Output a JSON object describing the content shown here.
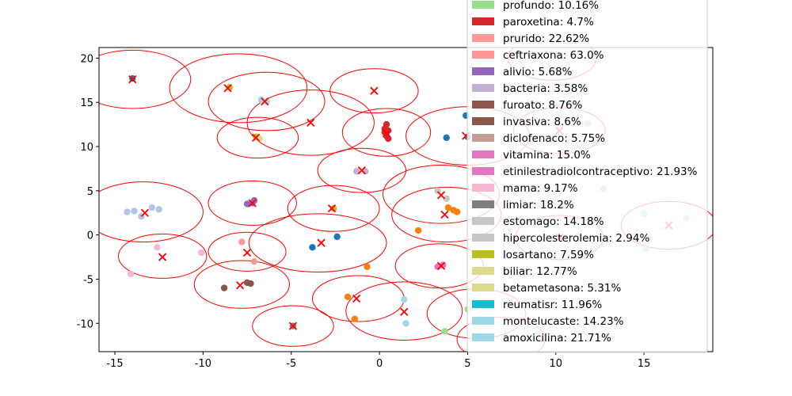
{
  "chart_data": {
    "type": "scatter",
    "xlim": [
      -15.9,
      18.9
    ],
    "ylim": [
      -13.2,
      21.2
    ],
    "xticks": [
      -15,
      -10,
      -5,
      0,
      5,
      10,
      15
    ],
    "yticks": [
      -10,
      -5,
      0,
      5,
      10,
      15,
      20
    ],
    "grid": false,
    "legend_placement": "top-right (partially cut off at top)",
    "legend": [
      {
        "label": "profundo: 10.16%",
        "color": "#98df8a"
      },
      {
        "label": "paroxetina: 4.7%",
        "color": "#d62728"
      },
      {
        "label": "prurido: 22.62%",
        "color": "#ff9896"
      },
      {
        "label": "ceftriaxona: 63.0%",
        "color": "#ff9896"
      },
      {
        "label": "alivio: 5.68%",
        "color": "#9467bd"
      },
      {
        "label": "bacteria: 3.58%",
        "color": "#c5b0d5"
      },
      {
        "label": "furoato: 8.76%",
        "color": "#8c564b"
      },
      {
        "label": "invasiva: 8.6%",
        "color": "#8c564b"
      },
      {
        "label": "diclofenaco: 5.75%",
        "color": "#c49c94"
      },
      {
        "label": "vitamina: 15.0%",
        "color": "#e377c2"
      },
      {
        "label": "etinilestradiolcontraceptivo: 21.93%",
        "color": "#e377c2"
      },
      {
        "label": "mama: 9.17%",
        "color": "#f7b6d2"
      },
      {
        "label": "limiar: 18.2%",
        "color": "#7f7f7f"
      },
      {
        "label": "estomago: 14.18%",
        "color": "#c7c7c7"
      },
      {
        "label": "hipercolesterolemia: 2.94%",
        "color": "#c7c7c7"
      },
      {
        "label": "losartano: 7.59%",
        "color": "#bcbd22"
      },
      {
        "label": "biliar: 12.77%",
        "color": "#dbdb8d"
      },
      {
        "label": "betametasona: 5.31%",
        "color": "#dbdb8d"
      },
      {
        "label": "reumatisr: 11.96%",
        "color": "#17becf"
      },
      {
        "label": "montelucaste: 14.23%",
        "color": "#9edae5"
      },
      {
        "label": "amoxicilina: 21.71%",
        "color": "#9edae5"
      }
    ],
    "points": [
      {
        "x": -14.0,
        "y": 17.7,
        "color": "#1f77b4"
      },
      {
        "x": -8.5,
        "y": 16.7,
        "color": "#bcbd22"
      },
      {
        "x": -6.7,
        "y": 15.3,
        "color": "#9edae5"
      },
      {
        "x": -6.4,
        "y": 15.1,
        "color": "#9edae5"
      },
      {
        "x": -7.0,
        "y": 11.1,
        "color": "#bcbd22"
      },
      {
        "x": -6.8,
        "y": 10.9,
        "color": "#dbdb8d"
      },
      {
        "x": 0.4,
        "y": 12.5,
        "color": "#d62728"
      },
      {
        "x": 0.3,
        "y": 12.0,
        "color": "#d62728"
      },
      {
        "x": 0.5,
        "y": 11.8,
        "color": "#d62728"
      },
      {
        "x": 0.4,
        "y": 11.2,
        "color": "#d62728"
      },
      {
        "x": 0.5,
        "y": 10.9,
        "color": "#d62728"
      },
      {
        "x": 0.3,
        "y": 11.6,
        "color": "#d62728"
      },
      {
        "x": 3.8,
        "y": 11.0,
        "color": "#1f77b4"
      },
      {
        "x": 4.9,
        "y": 13.5,
        "color": "#1f77b4"
      },
      {
        "x": 5.0,
        "y": 11.1,
        "color": "#1f77b4"
      },
      {
        "x": -1.3,
        "y": 7.2,
        "color": "#c5b0d5"
      },
      {
        "x": -0.8,
        "y": 7.2,
        "color": "#c5b0d5"
      },
      {
        "x": -7.1,
        "y": 3.9,
        "color": "#9467bd"
      },
      {
        "x": -7.5,
        "y": 3.5,
        "color": "#9467bd"
      },
      {
        "x": -7.2,
        "y": 3.6,
        "color": "#9467bd"
      },
      {
        "x": 3.3,
        "y": 5.0,
        "color": "#c7c7c7"
      },
      {
        "x": 3.8,
        "y": 4.1,
        "color": "#c7c7c7"
      },
      {
        "x": 3.9,
        "y": 3.1,
        "color": "#ff7f0e"
      },
      {
        "x": 4.2,
        "y": 2.8,
        "color": "#ff7f0e"
      },
      {
        "x": 4.4,
        "y": 2.6,
        "color": "#ff7f0e"
      },
      {
        "x": 2.2,
        "y": 0.5,
        "color": "#ff7f0e"
      },
      {
        "x": -14.3,
        "y": 2.6,
        "color": "#aec7e8"
      },
      {
        "x": -13.9,
        "y": 2.7,
        "color": "#aec7e8"
      },
      {
        "x": -13.5,
        "y": 2.1,
        "color": "#aec7e8"
      },
      {
        "x": -12.9,
        "y": 3.1,
        "color": "#aec7e8"
      },
      {
        "x": -12.5,
        "y": 2.9,
        "color": "#aec7e8"
      },
      {
        "x": -2.6,
        "y": 3.0,
        "color": "#bcbd22"
      },
      {
        "x": -2.4,
        "y": -0.2,
        "color": "#1f77b4"
      },
      {
        "x": -3.8,
        "y": -1.4,
        "color": "#1f77b4"
      },
      {
        "x": -7.8,
        "y": -0.8,
        "color": "#ff9896"
      },
      {
        "x": -7.1,
        "y": -3.0,
        "color": "#ff9896"
      },
      {
        "x": -12.6,
        "y": -1.4,
        "color": "#f7b6d2"
      },
      {
        "x": -10.1,
        "y": -2.0,
        "color": "#f7b6d2"
      },
      {
        "x": -14.1,
        "y": -4.4,
        "color": "#f7b6d2"
      },
      {
        "x": -7.5,
        "y": -5.4,
        "color": "#8c564b"
      },
      {
        "x": -7.3,
        "y": -5.5,
        "color": "#8c564b"
      },
      {
        "x": -8.8,
        "y": -6.0,
        "color": "#8c564b"
      },
      {
        "x": -0.7,
        "y": -3.6,
        "color": "#ff7f0e"
      },
      {
        "x": 3.3,
        "y": -3.6,
        "color": "#e377c2"
      },
      {
        "x": 3.6,
        "y": -3.4,
        "color": "#e377c2"
      },
      {
        "x": -4.9,
        "y": -10.3,
        "color": "#7f7f7f"
      },
      {
        "x": -1.8,
        "y": -7.0,
        "color": "#ff7f0e"
      },
      {
        "x": -1.4,
        "y": -9.5,
        "color": "#ff7f0e"
      },
      {
        "x": 1.4,
        "y": -7.3,
        "color": "#9edae5"
      },
      {
        "x": 1.5,
        "y": -10.0,
        "color": "#9edae5"
      },
      {
        "x": 3.7,
        "y": -10.9,
        "color": "#98df8a"
      },
      {
        "x": 5.0,
        "y": -8.4,
        "color": "#98df8a"
      },
      {
        "x": 11.8,
        "y": 12.6,
        "color": "#98df8a"
      },
      {
        "x": 12.7,
        "y": 5.2,
        "color": "#ff9896"
      },
      {
        "x": 15.0,
        "y": 2.4,
        "color": "#98df8a"
      },
      {
        "x": 17.4,
        "y": 1.9,
        "color": "#98df8a"
      },
      {
        "x": 15.1,
        "y": -1.6,
        "color": "#98df8a"
      }
    ],
    "centers": [
      {
        "x": -14.0,
        "y": 17.6
      },
      {
        "x": -8.6,
        "y": 16.6
      },
      {
        "x": -6.5,
        "y": 15.1
      },
      {
        "x": -3.9,
        "y": 12.7
      },
      {
        "x": -7.0,
        "y": 11.0
      },
      {
        "x": -0.3,
        "y": 16.3
      },
      {
        "x": 0.4,
        "y": 11.5
      },
      {
        "x": 4.9,
        "y": 11.2
      },
      {
        "x": 10.2,
        "y": 11.8
      },
      {
        "x": -1.0,
        "y": 7.3
      },
      {
        "x": -7.2,
        "y": 3.6
      },
      {
        "x": -13.3,
        "y": 2.5
      },
      {
        "x": 3.5,
        "y": 4.5
      },
      {
        "x": 3.7,
        "y": 2.3
      },
      {
        "x": -2.7,
        "y": 3.0
      },
      {
        "x": -3.3,
        "y": -0.9
      },
      {
        "x": -7.5,
        "y": -2.0
      },
      {
        "x": -12.3,
        "y": -2.5
      },
      {
        "x": -7.9,
        "y": -5.7
      },
      {
        "x": 3.5,
        "y": -3.5
      },
      {
        "x": -4.9,
        "y": -10.3
      },
      {
        "x": -1.3,
        "y": -7.2
      },
      {
        "x": 1.4,
        "y": -8.7
      },
      {
        "x": 16.4,
        "y": 1.1
      },
      {
        "x": 10.2,
        "y": -0.3
      }
    ],
    "circles": [
      {
        "x": -14.0,
        "y": 17.6,
        "rx": 3.3,
        "ry": 3.3
      },
      {
        "x": -8.0,
        "y": 16.6,
        "rx": 3.9,
        "ry": 3.9
      },
      {
        "x": -6.4,
        "y": 15.1,
        "rx": 3.3,
        "ry": 3.3
      },
      {
        "x": -3.9,
        "y": 12.7,
        "rx": 3.6,
        "ry": 3.7
      },
      {
        "x": -6.9,
        "y": 11.0,
        "rx": 2.3,
        "ry": 2.3
      },
      {
        "x": -0.3,
        "y": 16.3,
        "rx": 2.5,
        "ry": 2.5
      },
      {
        "x": 0.4,
        "y": 11.6,
        "rx": 2.5,
        "ry": 2.7
      },
      {
        "x": 5.0,
        "y": 11.2,
        "rx": 3.5,
        "ry": 3.3
      },
      {
        "x": 10.2,
        "y": 11.8,
        "rx": 2.6,
        "ry": 2.6
      },
      {
        "x": -1.0,
        "y": 7.3,
        "rx": 2.5,
        "ry": 2.5
      },
      {
        "x": -7.2,
        "y": 3.6,
        "rx": 2.5,
        "ry": 2.5
      },
      {
        "x": -13.4,
        "y": 2.6,
        "rx": 3.4,
        "ry": 3.4
      },
      {
        "x": 3.5,
        "y": 4.6,
        "rx": 3.3,
        "ry": 3.3
      },
      {
        "x": 3.8,
        "y": 2.3,
        "rx": 3.1,
        "ry": 3.1
      },
      {
        "x": -2.6,
        "y": 3.0,
        "rx": 2.6,
        "ry": 2.6
      },
      {
        "x": -3.5,
        "y": -0.9,
        "rx": 3.9,
        "ry": 3.3
      },
      {
        "x": -7.5,
        "y": -1.9,
        "rx": 2.2,
        "ry": 2.2
      },
      {
        "x": -12.3,
        "y": -2.4,
        "rx": 2.5,
        "ry": 2.5
      },
      {
        "x": -7.8,
        "y": -5.6,
        "rx": 2.7,
        "ry": 2.7
      },
      {
        "x": 3.4,
        "y": -3.5,
        "rx": 2.5,
        "ry": 2.5
      },
      {
        "x": -4.9,
        "y": -10.3,
        "rx": 2.3,
        "ry": 2.3
      },
      {
        "x": -1.2,
        "y": -7.2,
        "rx": 2.6,
        "ry": 2.6
      },
      {
        "x": 1.4,
        "y": -8.6,
        "rx": 3.3,
        "ry": 3.3
      },
      {
        "x": 5.5,
        "y": -8.9,
        "rx": 2.8,
        "ry": 2.8
      },
      {
        "x": 6.9,
        "y": -11.8,
        "rx": 2.5,
        "ry": 2.5
      },
      {
        "x": 16.4,
        "y": 1.1,
        "rx": 2.7,
        "ry": 2.7
      },
      {
        "x": 10.2,
        "y": -0.3,
        "rx": 2.5,
        "ry": 2.5
      },
      {
        "x": 9.8,
        "y": 20.0,
        "rx": 2.5,
        "ry": 2.5
      }
    ]
  }
}
